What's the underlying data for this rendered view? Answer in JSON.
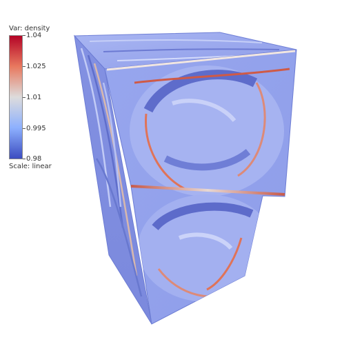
{
  "legend": {
    "title": "Var: density",
    "scale_label": "Scale: linear",
    "ticks": [
      "1.04",
      "1.025",
      "1.01",
      "0.995",
      "0.98"
    ],
    "range": [
      0.98,
      1.04
    ],
    "colormap": [
      "#b40426",
      "#e8795f",
      "#dddcdc",
      "#8db0fe",
      "#3b4cc0"
    ]
  },
  "render": {
    "subject": "3D pseudocolor volume rendering",
    "dominant_color": "#8796e6",
    "background": "#ffffff"
  }
}
